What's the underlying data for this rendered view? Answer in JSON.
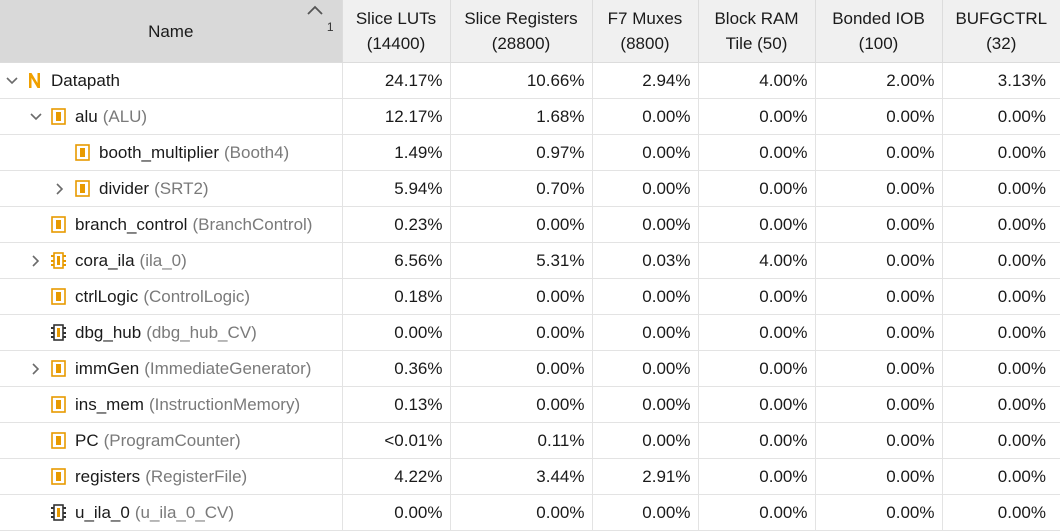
{
  "columns": [
    {
      "label1": "Name",
      "label2": ""
    },
    {
      "label1": "Slice LUTs",
      "label2": "(14400)"
    },
    {
      "label1": "Slice Registers",
      "label2": "(28800)"
    },
    {
      "label1": "F7 Muxes",
      "label2": "(8800)"
    },
    {
      "label1": "Block RAM",
      "label2": "Tile (50)"
    },
    {
      "label1": "Bonded IOB",
      "label2": "(100)"
    },
    {
      "label1": "BUFGCTRL",
      "label2": "(32)"
    }
  ],
  "sort": {
    "priority": "1",
    "icon": "sort-ascending-icon"
  },
  "rows": [
    {
      "depth": 0,
      "expander": "expanded",
      "icon": "top-module-icon",
      "instance": "Datapath",
      "module": "",
      "values": [
        "24.17%",
        "10.66%",
        "2.94%",
        "4.00%",
        "2.00%",
        "3.13%"
      ]
    },
    {
      "depth": 1,
      "expander": "expanded",
      "icon": "module-instance-icon",
      "instance": "alu",
      "module": "(ALU)",
      "values": [
        "12.17%",
        "1.68%",
        "0.00%",
        "0.00%",
        "0.00%",
        "0.00%"
      ]
    },
    {
      "depth": 2,
      "expander": "none",
      "icon": "module-instance-icon",
      "instance": "booth_multiplier",
      "module": "(Booth4)",
      "values": [
        "1.49%",
        "0.97%",
        "0.00%",
        "0.00%",
        "0.00%",
        "0.00%"
      ]
    },
    {
      "depth": 2,
      "expander": "collapsed",
      "icon": "module-instance-icon",
      "instance": "divider",
      "module": "(SRT2)",
      "values": [
        "5.94%",
        "0.70%",
        "0.00%",
        "0.00%",
        "0.00%",
        "0.00%"
      ]
    },
    {
      "depth": 1,
      "expander": "none",
      "icon": "module-instance-icon",
      "instance": "branch_control",
      "module": "(BranchControl)",
      "values": [
        "0.23%",
        "0.00%",
        "0.00%",
        "0.00%",
        "0.00%",
        "0.00%"
      ]
    },
    {
      "depth": 1,
      "expander": "collapsed",
      "icon": "debug-core-icon",
      "instance": "cora_ila",
      "module": "(ila_0)",
      "values": [
        "6.56%",
        "5.31%",
        "0.03%",
        "4.00%",
        "0.00%",
        "0.00%"
      ]
    },
    {
      "depth": 1,
      "expander": "none",
      "icon": "module-instance-icon",
      "instance": "ctrlLogic",
      "module": "(ControlLogic)",
      "values": [
        "0.18%",
        "0.00%",
        "0.00%",
        "0.00%",
        "0.00%",
        "0.00%"
      ]
    },
    {
      "depth": 1,
      "expander": "none",
      "icon": "black-box-icon",
      "instance": "dbg_hub",
      "module": "(dbg_hub_CV)",
      "values": [
        "0.00%",
        "0.00%",
        "0.00%",
        "0.00%",
        "0.00%",
        "0.00%"
      ]
    },
    {
      "depth": 1,
      "expander": "collapsed",
      "icon": "module-instance-icon",
      "instance": "immGen",
      "module": "(ImmediateGenerator)",
      "values": [
        "0.36%",
        "0.00%",
        "0.00%",
        "0.00%",
        "0.00%",
        "0.00%"
      ]
    },
    {
      "depth": 1,
      "expander": "none",
      "icon": "module-instance-icon",
      "instance": "ins_mem",
      "module": "(InstructionMemory)",
      "values": [
        "0.13%",
        "0.00%",
        "0.00%",
        "0.00%",
        "0.00%",
        "0.00%"
      ]
    },
    {
      "depth": 1,
      "expander": "none",
      "icon": "module-instance-icon",
      "instance": "PC",
      "module": "(ProgramCounter)",
      "values": [
        "<0.01%",
        "0.11%",
        "0.00%",
        "0.00%",
        "0.00%",
        "0.00%"
      ]
    },
    {
      "depth": 1,
      "expander": "none",
      "icon": "module-instance-icon",
      "instance": "registers",
      "module": "(RegisterFile)",
      "values": [
        "4.22%",
        "3.44%",
        "2.91%",
        "0.00%",
        "0.00%",
        "0.00%"
      ]
    },
    {
      "depth": 1,
      "expander": "none",
      "icon": "black-box-icon",
      "instance": "u_ila_0",
      "module": "(u_ila_0_CV)",
      "values": [
        "0.00%",
        "0.00%",
        "0.00%",
        "0.00%",
        "0.00%",
        "0.00%"
      ]
    }
  ],
  "colors": {
    "accent": "#f0a000",
    "header_bg": "#f0f0f0",
    "sorted_header_bg": "#d9d9d9",
    "module_text": "#7a7a7a"
  }
}
